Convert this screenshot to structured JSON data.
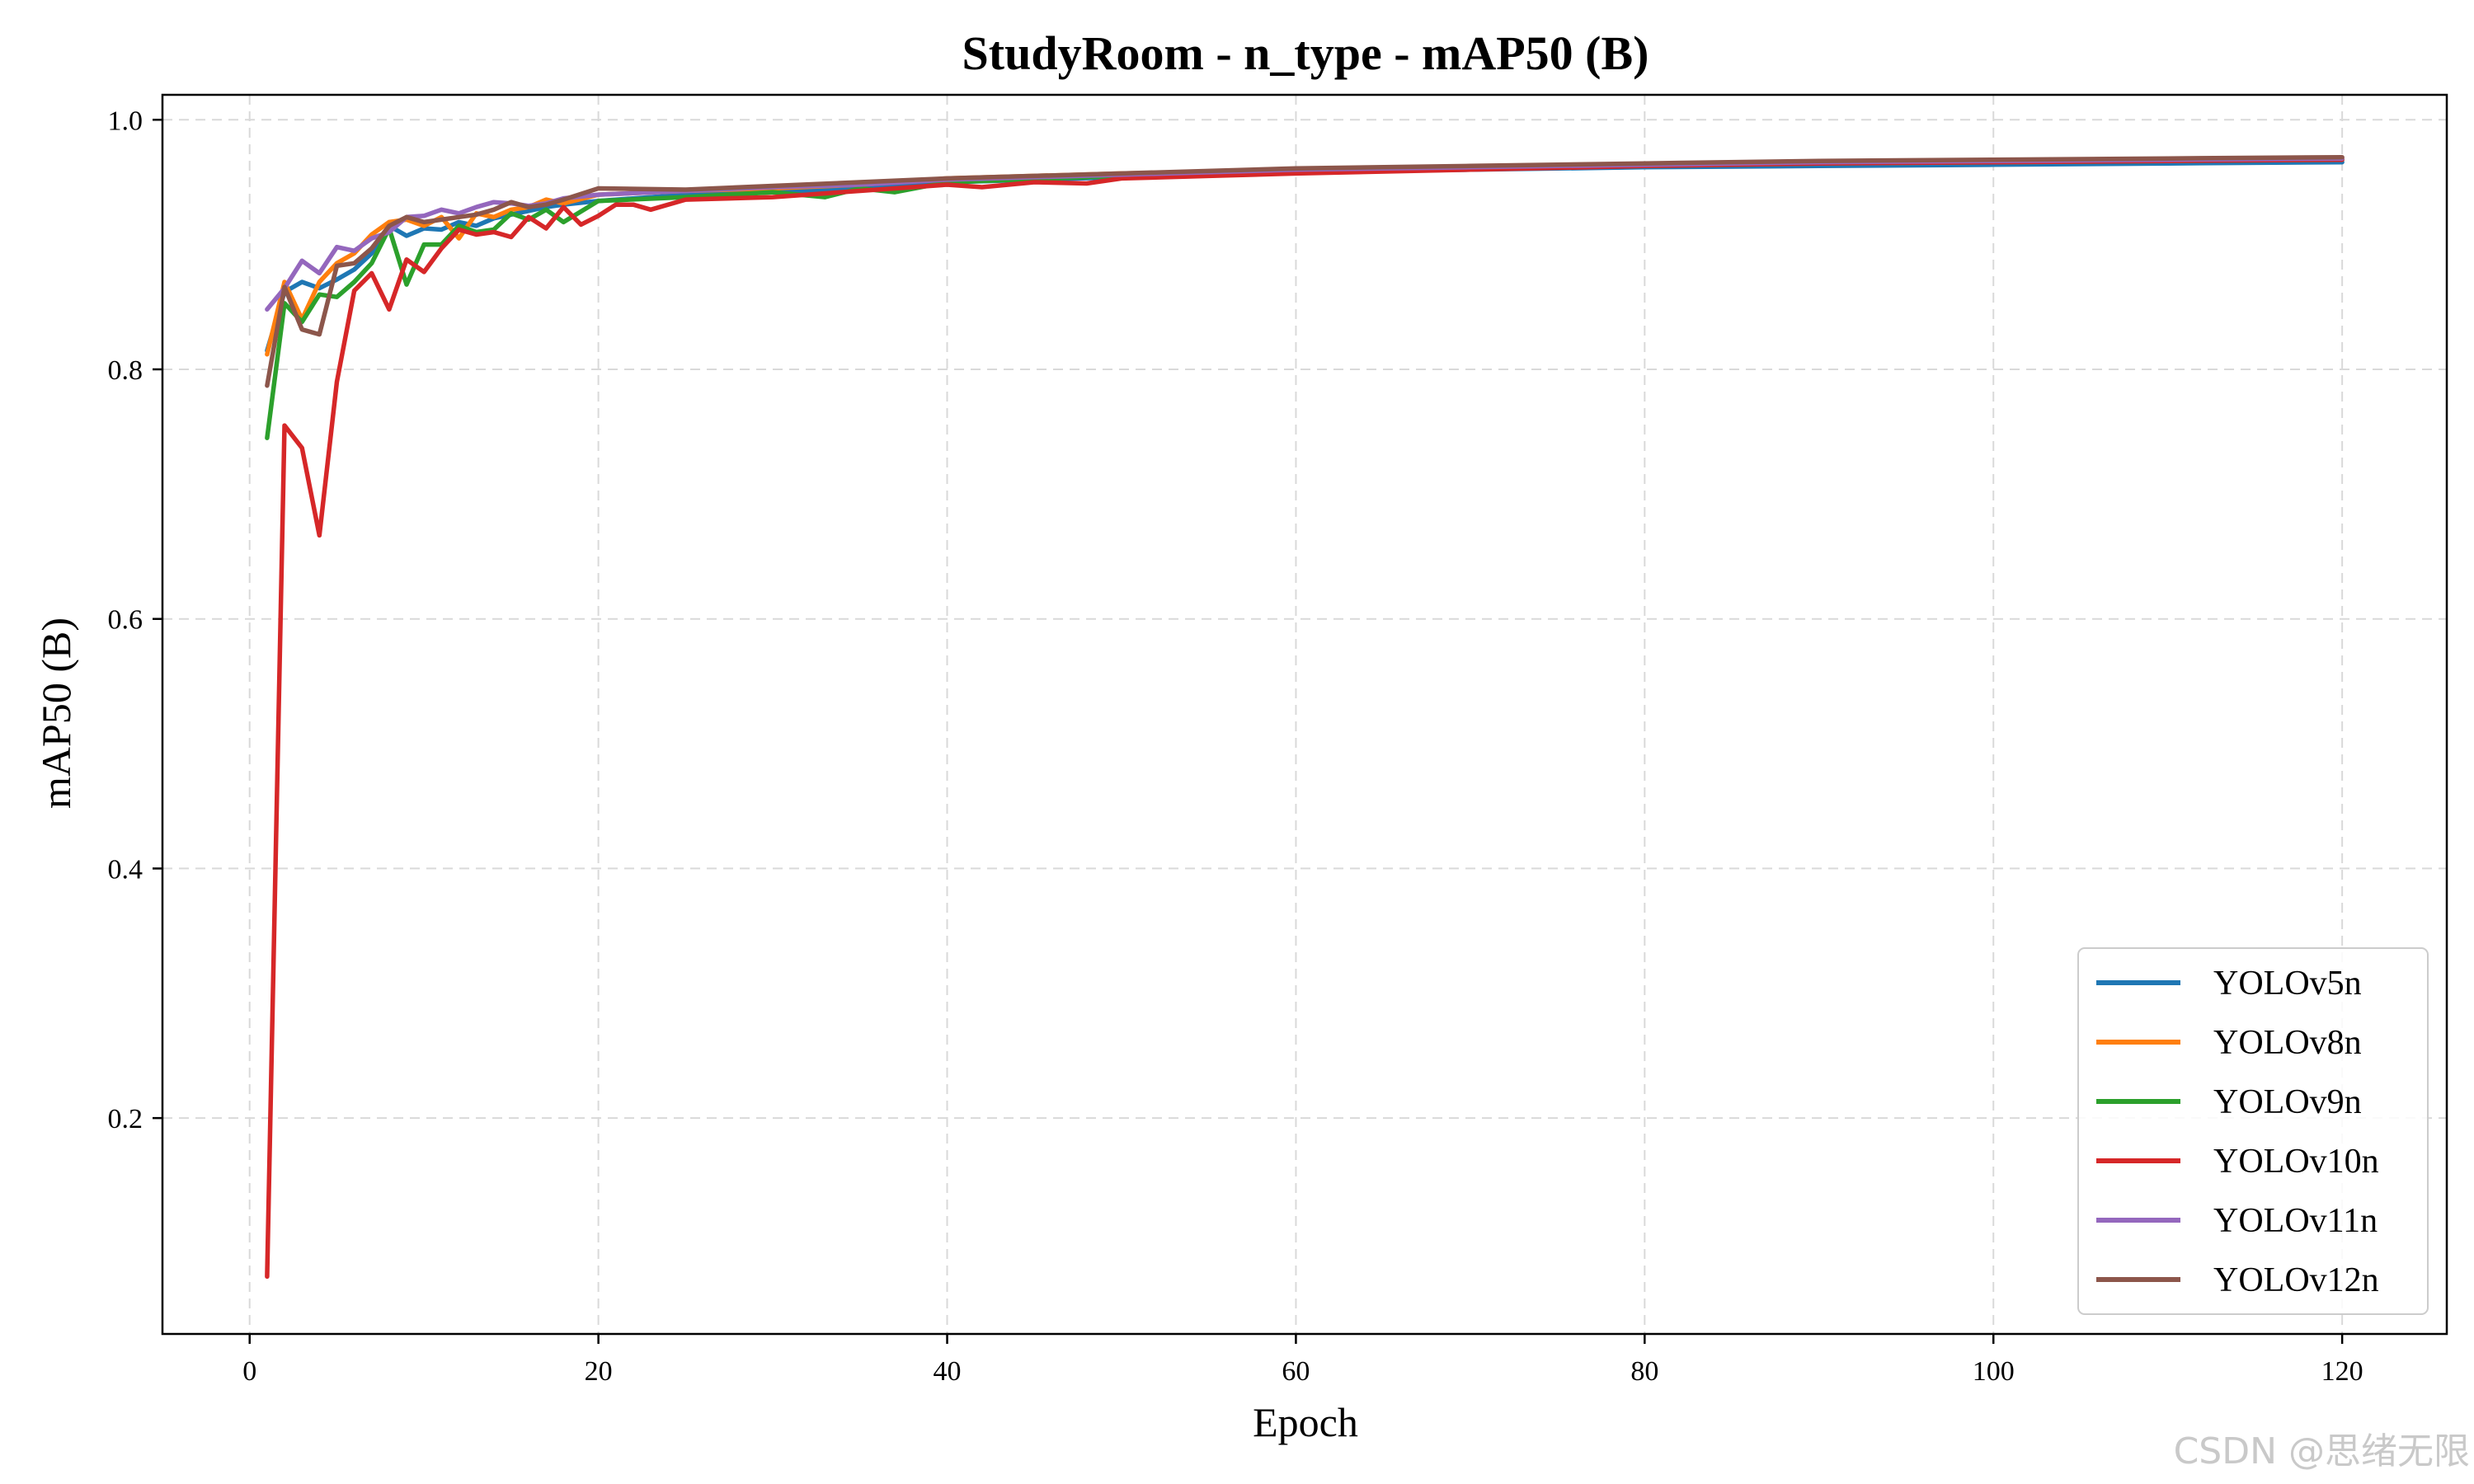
{
  "watermark": "CSDN @思绪无限",
  "chart_data": {
    "type": "line",
    "title": "StudyRoom - n_type - mAP50 (B)",
    "xlabel": "Epoch",
    "ylabel": "mAP50 (B)",
    "xlim": [
      -5,
      126
    ],
    "ylim": [
      0.027,
      1.02
    ],
    "xticks": [
      0,
      20,
      40,
      60,
      80,
      100,
      120
    ],
    "yticks": [
      0.2,
      0.4,
      0.6,
      0.8,
      1.0
    ],
    "xtick_labels": [
      "0",
      "20",
      "40",
      "60",
      "80",
      "100",
      "120"
    ],
    "ytick_labels": [
      "0.2",
      "0.4",
      "0.6",
      "0.8",
      "1.0"
    ],
    "grid": true,
    "legend_position": "lower-right",
    "series": [
      {
        "name": "YOLOv5n",
        "color": "#1f77b4",
        "points": [
          [
            1,
            0.815
          ],
          [
            2,
            0.862
          ],
          [
            3,
            0.87
          ],
          [
            4,
            0.865
          ],
          [
            5,
            0.872
          ],
          [
            6,
            0.88
          ],
          [
            7,
            0.893
          ],
          [
            8,
            0.915
          ],
          [
            9,
            0.907
          ],
          [
            10,
            0.913
          ],
          [
            11,
            0.912
          ],
          [
            12,
            0.918
          ],
          [
            13,
            0.915
          ],
          [
            14,
            0.921
          ],
          [
            15,
            0.924
          ],
          [
            16,
            0.927
          ],
          [
            17,
            0.93
          ],
          [
            18,
            0.932
          ],
          [
            20,
            0.935
          ],
          [
            25,
            0.94
          ],
          [
            30,
            0.942
          ],
          [
            35,
            0.945
          ],
          [
            40,
            0.95
          ],
          [
            50,
            0.954
          ],
          [
            60,
            0.958
          ],
          [
            70,
            0.96
          ],
          [
            80,
            0.962
          ],
          [
            90,
            0.963
          ],
          [
            100,
            0.964
          ],
          [
            110,
            0.965
          ],
          [
            120,
            0.966
          ]
        ]
      },
      {
        "name": "YOLOv8n",
        "color": "#ff7f0e",
        "points": [
          [
            1,
            0.812
          ],
          [
            2,
            0.87
          ],
          [
            3,
            0.84
          ],
          [
            4,
            0.87
          ],
          [
            5,
            0.885
          ],
          [
            6,
            0.893
          ],
          [
            7,
            0.908
          ],
          [
            8,
            0.918
          ],
          [
            9,
            0.92
          ],
          [
            10,
            0.915
          ],
          [
            11,
            0.922
          ],
          [
            12,
            0.905
          ],
          [
            13,
            0.925
          ],
          [
            14,
            0.922
          ],
          [
            15,
            0.928
          ],
          [
            16,
            0.93
          ],
          [
            17,
            0.936
          ],
          [
            18,
            0.933
          ],
          [
            20,
            0.94
          ],
          [
            25,
            0.943
          ],
          [
            30,
            0.945
          ],
          [
            35,
            0.948
          ],
          [
            40,
            0.953
          ],
          [
            50,
            0.957
          ],
          [
            60,
            0.96
          ],
          [
            70,
            0.962
          ],
          [
            80,
            0.964
          ],
          [
            90,
            0.966
          ],
          [
            100,
            0.967
          ],
          [
            110,
            0.968
          ],
          [
            120,
            0.969
          ]
        ]
      },
      {
        "name": "YOLOv9n",
        "color": "#2ca02c",
        "points": [
          [
            1,
            0.745
          ],
          [
            2,
            0.853
          ],
          [
            3,
            0.838
          ],
          [
            4,
            0.86
          ],
          [
            5,
            0.858
          ],
          [
            6,
            0.87
          ],
          [
            7,
            0.885
          ],
          [
            8,
            0.913
          ],
          [
            9,
            0.868
          ],
          [
            10,
            0.9
          ],
          [
            11,
            0.9
          ],
          [
            12,
            0.915
          ],
          [
            13,
            0.91
          ],
          [
            14,
            0.912
          ],
          [
            15,
            0.925
          ],
          [
            16,
            0.92
          ],
          [
            17,
            0.928
          ],
          [
            18,
            0.918
          ],
          [
            20,
            0.935
          ],
          [
            25,
            0.938
          ],
          [
            30,
            0.942
          ],
          [
            33,
            0.938
          ],
          [
            35,
            0.945
          ],
          [
            37,
            0.942
          ],
          [
            40,
            0.95
          ],
          [
            50,
            0.955
          ],
          [
            60,
            0.959
          ],
          [
            70,
            0.961
          ],
          [
            80,
            0.963
          ],
          [
            90,
            0.965
          ],
          [
            100,
            0.966
          ],
          [
            110,
            0.967
          ],
          [
            120,
            0.968
          ]
        ]
      },
      {
        "name": "YOLOv10n",
        "color": "#d62728",
        "points": [
          [
            1,
            0.073
          ],
          [
            2,
            0.755
          ],
          [
            3,
            0.737
          ],
          [
            4,
            0.667
          ],
          [
            5,
            0.79
          ],
          [
            6,
            0.863
          ],
          [
            7,
            0.877
          ],
          [
            8,
            0.848
          ],
          [
            9,
            0.888
          ],
          [
            10,
            0.878
          ],
          [
            11,
            0.897
          ],
          [
            12,
            0.912
          ],
          [
            13,
            0.908
          ],
          [
            14,
            0.91
          ],
          [
            15,
            0.906
          ],
          [
            16,
            0.922
          ],
          [
            17,
            0.913
          ],
          [
            18,
            0.93
          ],
          [
            19,
            0.916
          ],
          [
            20,
            0.923
          ],
          [
            21,
            0.932
          ],
          [
            22,
            0.932
          ],
          [
            23,
            0.928
          ],
          [
            25,
            0.936
          ],
          [
            30,
            0.938
          ],
          [
            35,
            0.943
          ],
          [
            40,
            0.948
          ],
          [
            42,
            0.946
          ],
          [
            45,
            0.95
          ],
          [
            48,
            0.949
          ],
          [
            50,
            0.953
          ],
          [
            55,
            0.955
          ],
          [
            60,
            0.957
          ],
          [
            70,
            0.96
          ],
          [
            80,
            0.963
          ],
          [
            90,
            0.965
          ],
          [
            100,
            0.966
          ],
          [
            110,
            0.967
          ],
          [
            120,
            0.968
          ]
        ]
      },
      {
        "name": "YOLOv11n",
        "color": "#9467bd",
        "points": [
          [
            1,
            0.848
          ],
          [
            2,
            0.865
          ],
          [
            3,
            0.887
          ],
          [
            4,
            0.877
          ],
          [
            5,
            0.898
          ],
          [
            6,
            0.895
          ],
          [
            7,
            0.905
          ],
          [
            8,
            0.91
          ],
          [
            9,
            0.922
          ],
          [
            10,
            0.923
          ],
          [
            11,
            0.928
          ],
          [
            12,
            0.925
          ],
          [
            13,
            0.93
          ],
          [
            14,
            0.934
          ],
          [
            15,
            0.933
          ],
          [
            16,
            0.931
          ],
          [
            17,
            0.933
          ],
          [
            18,
            0.937
          ],
          [
            20,
            0.94
          ],
          [
            25,
            0.943
          ],
          [
            30,
            0.946
          ],
          [
            35,
            0.948
          ],
          [
            40,
            0.952
          ],
          [
            50,
            0.956
          ],
          [
            60,
            0.96
          ],
          [
            70,
            0.962
          ],
          [
            80,
            0.964
          ],
          [
            90,
            0.966
          ],
          [
            100,
            0.967
          ],
          [
            110,
            0.968
          ],
          [
            120,
            0.969
          ]
        ]
      },
      {
        "name": "YOLOv12n",
        "color": "#8c564b",
        "points": [
          [
            1,
            0.787
          ],
          [
            2,
            0.866
          ],
          [
            3,
            0.832
          ],
          [
            4,
            0.828
          ],
          [
            5,
            0.883
          ],
          [
            6,
            0.885
          ],
          [
            7,
            0.897
          ],
          [
            8,
            0.915
          ],
          [
            9,
            0.922
          ],
          [
            10,
            0.918
          ],
          [
            11,
            0.92
          ],
          [
            12,
            0.922
          ],
          [
            13,
            0.924
          ],
          [
            14,
            0.928
          ],
          [
            15,
            0.934
          ],
          [
            16,
            0.93
          ],
          [
            17,
            0.932
          ],
          [
            18,
            0.936
          ],
          [
            20,
            0.945
          ],
          [
            25,
            0.944
          ],
          [
            30,
            0.947
          ],
          [
            35,
            0.95
          ],
          [
            40,
            0.953
          ],
          [
            50,
            0.957
          ],
          [
            60,
            0.961
          ],
          [
            70,
            0.963
          ],
          [
            80,
            0.965
          ],
          [
            90,
            0.967
          ],
          [
            100,
            0.968
          ],
          [
            110,
            0.969
          ],
          [
            120,
            0.97
          ]
        ]
      }
    ]
  }
}
